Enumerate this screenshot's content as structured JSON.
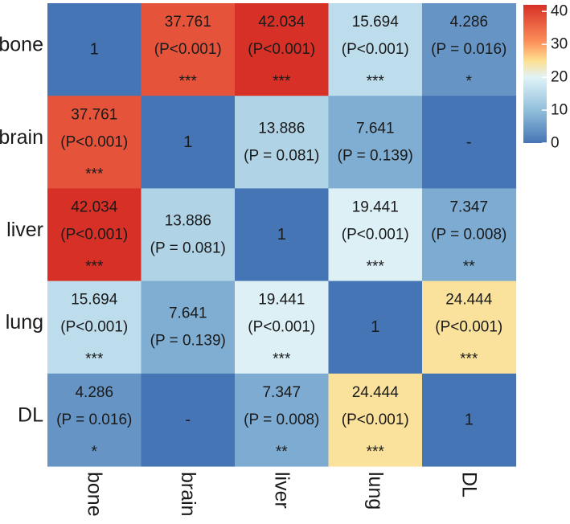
{
  "chart_data": {
    "type": "heatmap",
    "title": "",
    "rows": [
      "bone",
      "brain",
      "liver",
      "lung",
      "DL"
    ],
    "columns": [
      "bone",
      "brain",
      "liver",
      "lung",
      "DL"
    ],
    "values": [
      [
        null,
        37.761,
        42.034,
        15.694,
        4.286
      ],
      [
        37.761,
        null,
        13.886,
        7.641,
        null
      ],
      [
        42.034,
        13.886,
        null,
        19.441,
        7.347
      ],
      [
        15.694,
        7.641,
        19.441,
        null,
        24.444
      ],
      [
        4.286,
        null,
        7.347,
        24.444,
        null
      ]
    ],
    "cell_labels": [
      [
        [
          "1"
        ],
        [
          "37.761",
          "(P<0.001)",
          "***"
        ],
        [
          "42.034",
          "(P<0.001)",
          "***"
        ],
        [
          "15.694",
          "(P<0.001)",
          "***"
        ],
        [
          "4.286",
          "(P = 0.016)",
          "*"
        ]
      ],
      [
        [
          "37.761",
          "(P<0.001)",
          "***"
        ],
        [
          "1"
        ],
        [
          "13.886",
          "(P = 0.081)"
        ],
        [
          "7.641",
          "(P = 0.139)"
        ],
        [
          "-"
        ]
      ],
      [
        [
          "42.034",
          "(P<0.001)",
          "***"
        ],
        [
          "13.886",
          "(P = 0.081)"
        ],
        [
          "1"
        ],
        [
          "19.441",
          "(P<0.001)",
          "***"
        ],
        [
          "7.347",
          "(P = 0.008)",
          "**"
        ]
      ],
      [
        [
          "15.694",
          "(P<0.001)",
          "***"
        ],
        [
          "7.641",
          "(P = 0.139)"
        ],
        [
          "19.441",
          "(P<0.001)",
          "***"
        ],
        [
          "1"
        ],
        [
          "24.444",
          "(P<0.001)",
          "***"
        ]
      ],
      [
        [
          "4.286",
          "(P = 0.016)",
          "*"
        ],
        [
          "-"
        ],
        [
          "7.347",
          "(P = 0.008)",
          "**"
        ],
        [
          "24.444",
          "(P<0.001)",
          "***"
        ],
        [
          "1"
        ]
      ]
    ],
    "color_scale": {
      "range": [
        0,
        42
      ],
      "stops": [
        {
          "value": 0,
          "color": "#4575b4"
        },
        {
          "value": 10,
          "color": "#91bfdb"
        },
        {
          "value": 20,
          "color": "#e0f3f8"
        },
        {
          "value": 25,
          "color": "#fee090"
        },
        {
          "value": 31,
          "color": "#fc8d59"
        },
        {
          "value": 42,
          "color": "#d73027"
        }
      ],
      "ticks": [
        0,
        10,
        20,
        30,
        40
      ]
    },
    "legend_position": "top-right"
  }
}
